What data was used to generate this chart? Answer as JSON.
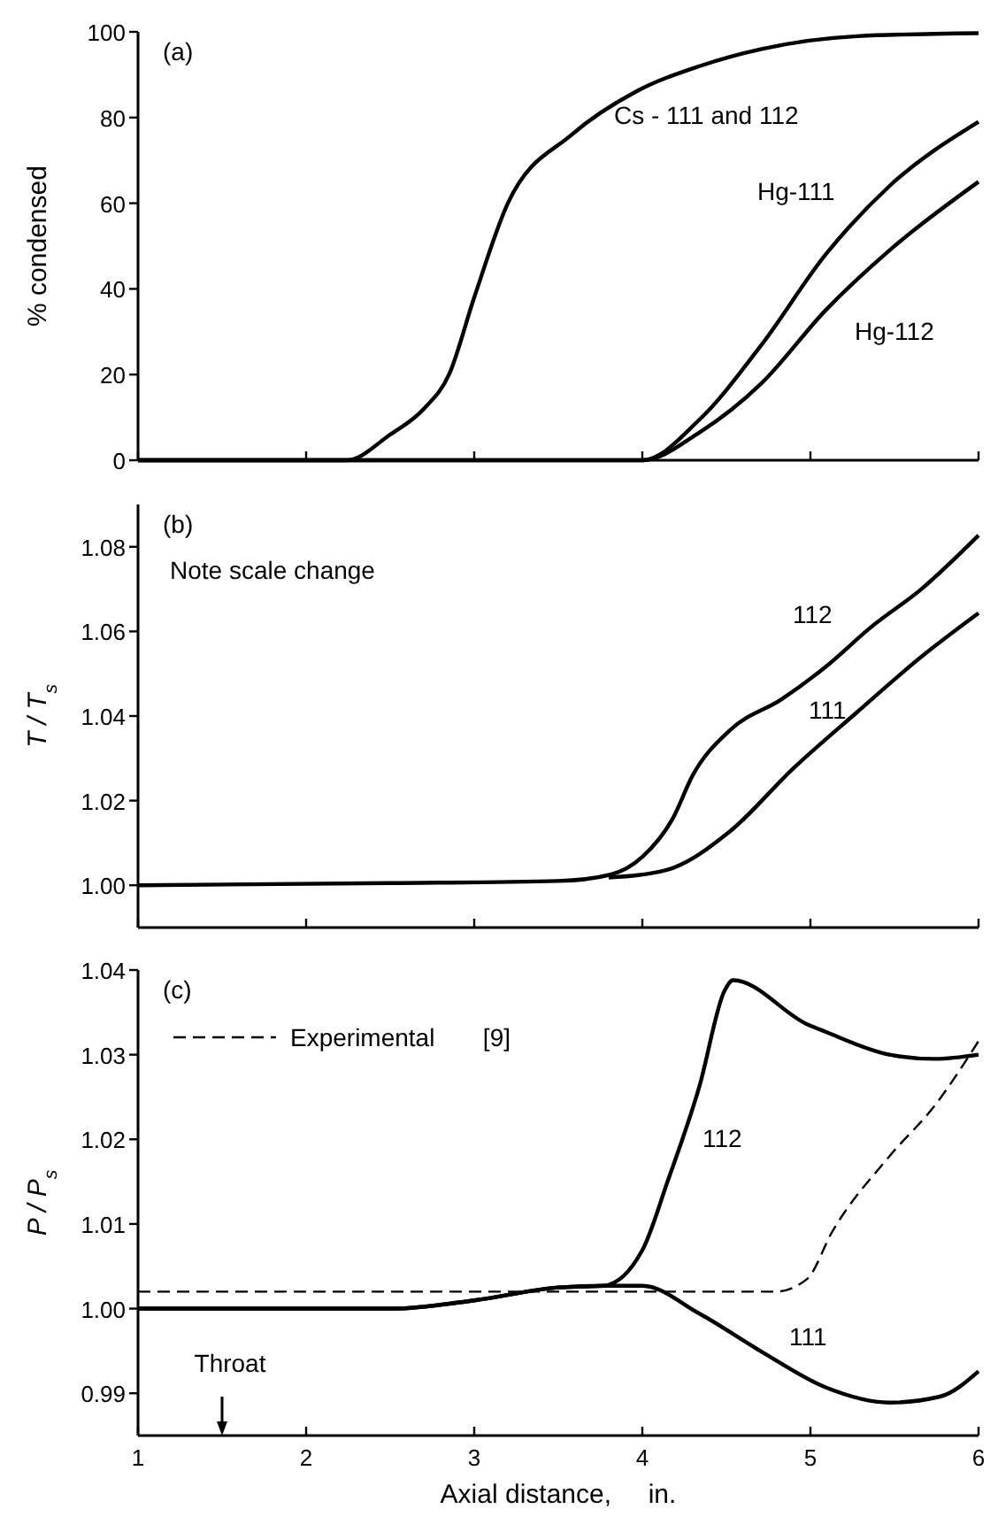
{
  "chart_data": [
    {
      "type": "line",
      "title": "(a)",
      "ylabel": "% condensed",
      "xlim": [
        1,
        6
      ],
      "xticks": [
        1,
        2,
        3,
        4,
        5,
        6
      ],
      "ylim": [
        0,
        100
      ],
      "yticks": [
        0,
        20,
        40,
        60,
        80,
        100
      ],
      "tick_labels": "y",
      "grid": false,
      "legend": false,
      "series": [
        {
          "name": "Cs - 111 and 112",
          "color": "#000000",
          "x": [
            1,
            2.24,
            2.5,
            2.7,
            2.85,
            3.0,
            3.2,
            3.58,
            3.96,
            4.34,
            4.71,
            5.28,
            6
          ],
          "values": [
            0,
            0,
            6,
            12,
            20,
            38,
            60,
            76,
            86,
            92,
            96,
            99,
            99.7
          ]
        },
        {
          "name": "Hg-111",
          "color": "#000000",
          "x": [
            1,
            4.0,
            4.34,
            4.71,
            5.09,
            5.47,
            6
          ],
          "values": [
            0,
            0,
            9.5,
            27,
            48,
            64,
            79
          ]
        },
        {
          "name": "Hg-112",
          "color": "#000000",
          "x": [
            1,
            4.0,
            4.34,
            4.71,
            5.09,
            5.47,
            6
          ],
          "values": [
            0,
            0,
            6.5,
            18,
            35,
            49,
            65
          ]
        }
      ]
    },
    {
      "type": "line",
      "title": "(b)",
      "ylabel": "T / T$_{s}$",
      "annotations": [
        "Note scale change"
      ],
      "xlim": [
        1,
        6
      ],
      "xticks": [
        1,
        2,
        3,
        4,
        5,
        6
      ],
      "ylim": [
        0.99,
        1.09
      ],
      "yticks": [
        {
          "value": 1.0,
          "label": "1.00"
        },
        {
          "value": 1.02,
          "label": "1.02"
        },
        {
          "value": 1.04,
          "label": "1.04"
        },
        {
          "value": 1.06,
          "label": "1.06"
        },
        {
          "value": 1.08,
          "label": "1.08"
        }
      ],
      "tick_labels": "y",
      "grid": false,
      "legend": false,
      "series": [
        {
          "name": "112",
          "color": "#000000",
          "x": [
            1,
            2.5,
            3.5,
            3.81,
            4.0,
            4.18,
            4.3,
            4.52,
            4.83,
            5.09,
            5.36,
            5.66,
            6
          ],
          "values": [
            1.0,
            1.0005,
            1.001,
            1.0025,
            1.0067,
            1.0157,
            1.026,
            1.0366,
            1.044,
            1.0516,
            1.061,
            1.07,
            1.0827
          ]
        },
        {
          "name": "111",
          "color": "#000000",
          "x": [
            3.8,
            4.15,
            4.52,
            4.9,
            5.28,
            5.66,
            6
          ],
          "values": [
            1.0018,
            1.0037,
            1.0127,
            1.0277,
            1.041,
            1.054,
            1.0643
          ]
        }
      ]
    },
    {
      "type": "line",
      "title": "(c)",
      "ylabel": "P / P$_{s}$",
      "xlabel": "Axial distance,     in.",
      "annotations": [
        "Throat"
      ],
      "xlim": [
        1,
        6
      ],
      "xticks": [
        1,
        2,
        3,
        4,
        5,
        6
      ],
      "ylim": [
        0.985,
        1.04
      ],
      "yticks": [
        {
          "value": 0.99,
          "label": "0.99"
        },
        {
          "value": 1.0,
          "label": "1.00"
        },
        {
          "value": 1.01,
          "label": "1.01"
        },
        {
          "value": 1.02,
          "label": "1.02"
        },
        {
          "value": 1.03,
          "label": "1.03"
        },
        {
          "value": 1.04,
          "label": "1.04"
        }
      ],
      "grid": false,
      "legend": "top left",
      "series": [
        {
          "name": "112",
          "color": "#000000",
          "x": [
            1,
            2.52,
            3.01,
            3.5,
            3.77,
            4.0,
            4.15,
            4.34,
            4.49,
            4.54,
            4.98,
            5.09,
            5.47,
            5.74,
            6
          ],
          "values": [
            1.0,
            1.0,
            1.001,
            1.0025,
            1.0027,
            1.0069,
            1.015,
            1.0263,
            1.0376,
            1.0388,
            1.0336,
            1.0327,
            1.03,
            1.0295,
            1.03
          ]
        },
        {
          "name": "111",
          "color": "#000000",
          "x": [
            1,
            2.52,
            3.01,
            3.5,
            3.77,
            4.0,
            4.34,
            4.71,
            5.09,
            5.47,
            5.77,
            6
          ],
          "values": [
            1.0,
            1.0,
            1.001,
            1.0025,
            1.0027,
            1.0027,
            0.9994,
            0.9949,
            0.9907,
            0.9889,
            0.9896,
            0.9926
          ]
        },
        {
          "name": "Experimental       [9]",
          "color": "#000000",
          "line_style": "dashed",
          "x": [
            1,
            4.79,
            4.98,
            5.13,
            5.47,
            5.74,
            6
          ],
          "values": [
            1.002,
            1.002,
            1.0035,
            1.0091,
            1.018,
            1.024,
            1.0316
          ]
        }
      ]
    }
  ]
}
